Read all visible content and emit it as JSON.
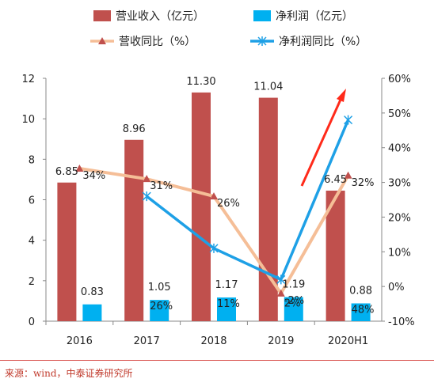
{
  "chart_data": {
    "type": "bar",
    "categories": [
      "2016",
      "2017",
      "2018",
      "2019",
      "2020H1"
    ],
    "series": [
      {
        "name": "营业收入（亿元）",
        "kind": "bar",
        "axis": "left",
        "color": "#c0504d",
        "values": [
          6.85,
          8.96,
          11.3,
          11.04,
          6.45
        ],
        "labels": [
          "6.85",
          "8.96",
          "11.30",
          "11.04",
          "6.45"
        ]
      },
      {
        "name": "净利润（亿元）",
        "kind": "bar",
        "axis": "left",
        "color": "#00b0f0",
        "values": [
          0.83,
          1.05,
          1.17,
          1.19,
          0.88
        ],
        "labels": [
          "0.83",
          "1.05",
          "1.17",
          "1.19",
          "0.88"
        ]
      },
      {
        "name": "营收同比（%）",
        "kind": "line",
        "axis": "right",
        "color": "#f5be97",
        "values": [
          34,
          31,
          26,
          -2,
          32
        ],
        "labels": [
          "34%",
          "31%",
          "26%",
          "-2%",
          "32%"
        ]
      },
      {
        "name": "净利润同比（%）",
        "kind": "line",
        "axis": "right",
        "color": "#1ea0e6",
        "values": [
          null,
          26,
          11,
          2,
          48
        ],
        "labels": [
          "",
          "26%",
          "11%",
          "2%",
          "48%"
        ]
      }
    ],
    "y_left": {
      "min": 0,
      "max": 12,
      "ticks": [
        "0",
        "2",
        "4",
        "6",
        "8",
        "10",
        "12"
      ]
    },
    "y_right": {
      "min": -10,
      "max": 60,
      "ticks": [
        "-10%",
        "0%",
        "10%",
        "20%",
        "30%",
        "40%",
        "50%",
        "60%"
      ]
    },
    "arrow_color": "#ff2a1a"
  },
  "source_text": "来源：wind，中泰证券研究所"
}
